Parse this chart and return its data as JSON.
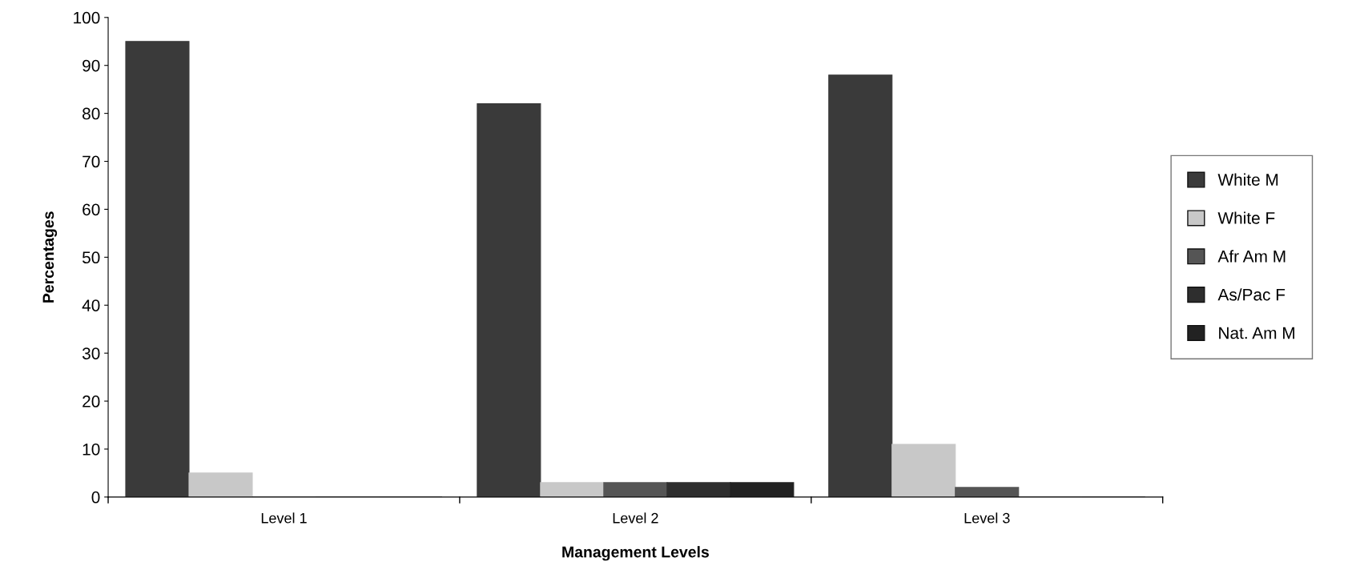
{
  "chart_data": {
    "type": "bar",
    "xlabel": "Management Levels",
    "ylabel": "Percentages",
    "categories": [
      "Level 1",
      "Level 2",
      "Level 3"
    ],
    "series": [
      {
        "name": "White M",
        "color": "#3a3a3a",
        "values": [
          95,
          82,
          88
        ]
      },
      {
        "name": "White F",
        "color": "#c8c8c8",
        "values": [
          5,
          3,
          11
        ]
      },
      {
        "name": "Afr Am M",
        "color": "#555555",
        "values": [
          0,
          3,
          2
        ]
      },
      {
        "name": "As/Pac F",
        "color": "#2e2e2e",
        "values": [
          0,
          3,
          0
        ]
      },
      {
        "name": "Nat. Am M",
        "color": "#222222",
        "values": [
          0,
          3,
          0
        ]
      }
    ],
    "ylim": [
      0,
      100
    ],
    "yticks": [
      0,
      10,
      20,
      30,
      40,
      50,
      60,
      70,
      80,
      90,
      100
    ],
    "grid": false,
    "legend": "right"
  }
}
